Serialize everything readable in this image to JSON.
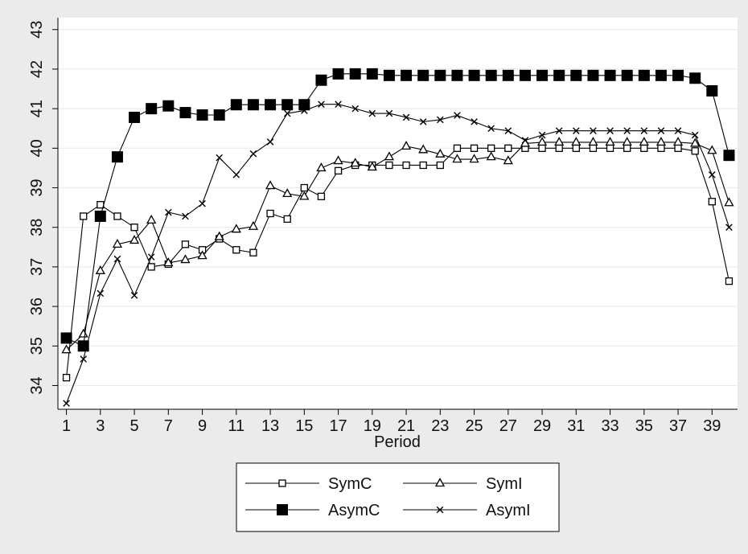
{
  "colors": {
    "background": "#ebebeb",
    "plot_bg": "#ffffff",
    "grid": "#ebebeb",
    "line": "#000000"
  },
  "chart_data": {
    "type": "line",
    "xlabel": "Period",
    "ylabel": "",
    "title": "",
    "xlim": [
      0.5,
      40.5
    ],
    "ylim": [
      33.4,
      43.3
    ],
    "xticks": [
      1,
      3,
      5,
      7,
      9,
      11,
      13,
      15,
      17,
      19,
      21,
      23,
      25,
      27,
      29,
      31,
      33,
      35,
      37,
      39
    ],
    "yticks": [
      34,
      35,
      36,
      37,
      38,
      39,
      40,
      41,
      42,
      43
    ],
    "grid": "horizontal",
    "legend_position": "bottom",
    "x": [
      1,
      2,
      3,
      4,
      5,
      6,
      7,
      8,
      9,
      10,
      11,
      12,
      13,
      14,
      15,
      16,
      17,
      18,
      19,
      20,
      21,
      22,
      23,
      24,
      25,
      26,
      27,
      28,
      29,
      30,
      31,
      32,
      33,
      34,
      35,
      36,
      37,
      38,
      39,
      40
    ],
    "series": [
      {
        "name": "SymC",
        "marker": "hollow-square",
        "values": [
          34.2,
          38.28,
          38.57,
          38.28,
          38.0,
          37.0,
          37.07,
          37.57,
          37.43,
          37.71,
          37.43,
          37.36,
          38.35,
          38.21,
          39.0,
          38.78,
          39.43,
          39.57,
          39.57,
          39.57,
          39.57,
          39.57,
          39.57,
          40.0,
          40.0,
          40.0,
          40.0,
          40.0,
          40.0,
          40.0,
          40.0,
          40.0,
          40.0,
          40.0,
          40.0,
          40.0,
          40.0,
          39.93,
          38.65,
          36.64
        ]
      },
      {
        "name": "SymI",
        "marker": "hollow-triangle",
        "values": [
          34.9,
          35.3,
          36.9,
          37.57,
          37.67,
          38.18,
          37.1,
          37.18,
          37.28,
          37.76,
          37.95,
          38.02,
          39.05,
          38.85,
          38.78,
          39.5,
          39.68,
          39.62,
          39.52,
          39.78,
          40.05,
          39.96,
          39.85,
          39.72,
          39.72,
          39.78,
          39.68,
          40.12,
          40.15,
          40.15,
          40.15,
          40.15,
          40.15,
          40.15,
          40.15,
          40.15,
          40.15,
          40.12,
          39.94,
          38.62
        ]
      },
      {
        "name": "AsymC",
        "marker": "filled-square",
        "values": [
          35.2,
          35.0,
          38.28,
          39.78,
          40.78,
          41.0,
          41.07,
          40.9,
          40.84,
          40.84,
          41.1,
          41.1,
          41.1,
          41.1,
          41.1,
          41.72,
          41.88,
          41.88,
          41.88,
          41.84,
          41.84,
          41.84,
          41.84,
          41.84,
          41.84,
          41.84,
          41.84,
          41.84,
          41.84,
          41.84,
          41.84,
          41.84,
          41.84,
          41.84,
          41.84,
          41.84,
          41.84,
          41.77,
          41.45,
          39.82
        ]
      },
      {
        "name": "AsymI",
        "marker": "x",
        "values": [
          33.55,
          34.67,
          36.33,
          37.2,
          36.28,
          37.25,
          38.38,
          38.28,
          38.6,
          39.76,
          39.33,
          39.86,
          40.16,
          40.88,
          40.95,
          41.11,
          41.11,
          41.0,
          40.88,
          40.88,
          40.78,
          40.67,
          40.72,
          40.83,
          40.67,
          40.5,
          40.44,
          40.2,
          40.33,
          40.44,
          40.44,
          40.44,
          40.44,
          40.44,
          40.44,
          40.44,
          40.44,
          40.33,
          39.33,
          38.0
        ]
      }
    ]
  }
}
